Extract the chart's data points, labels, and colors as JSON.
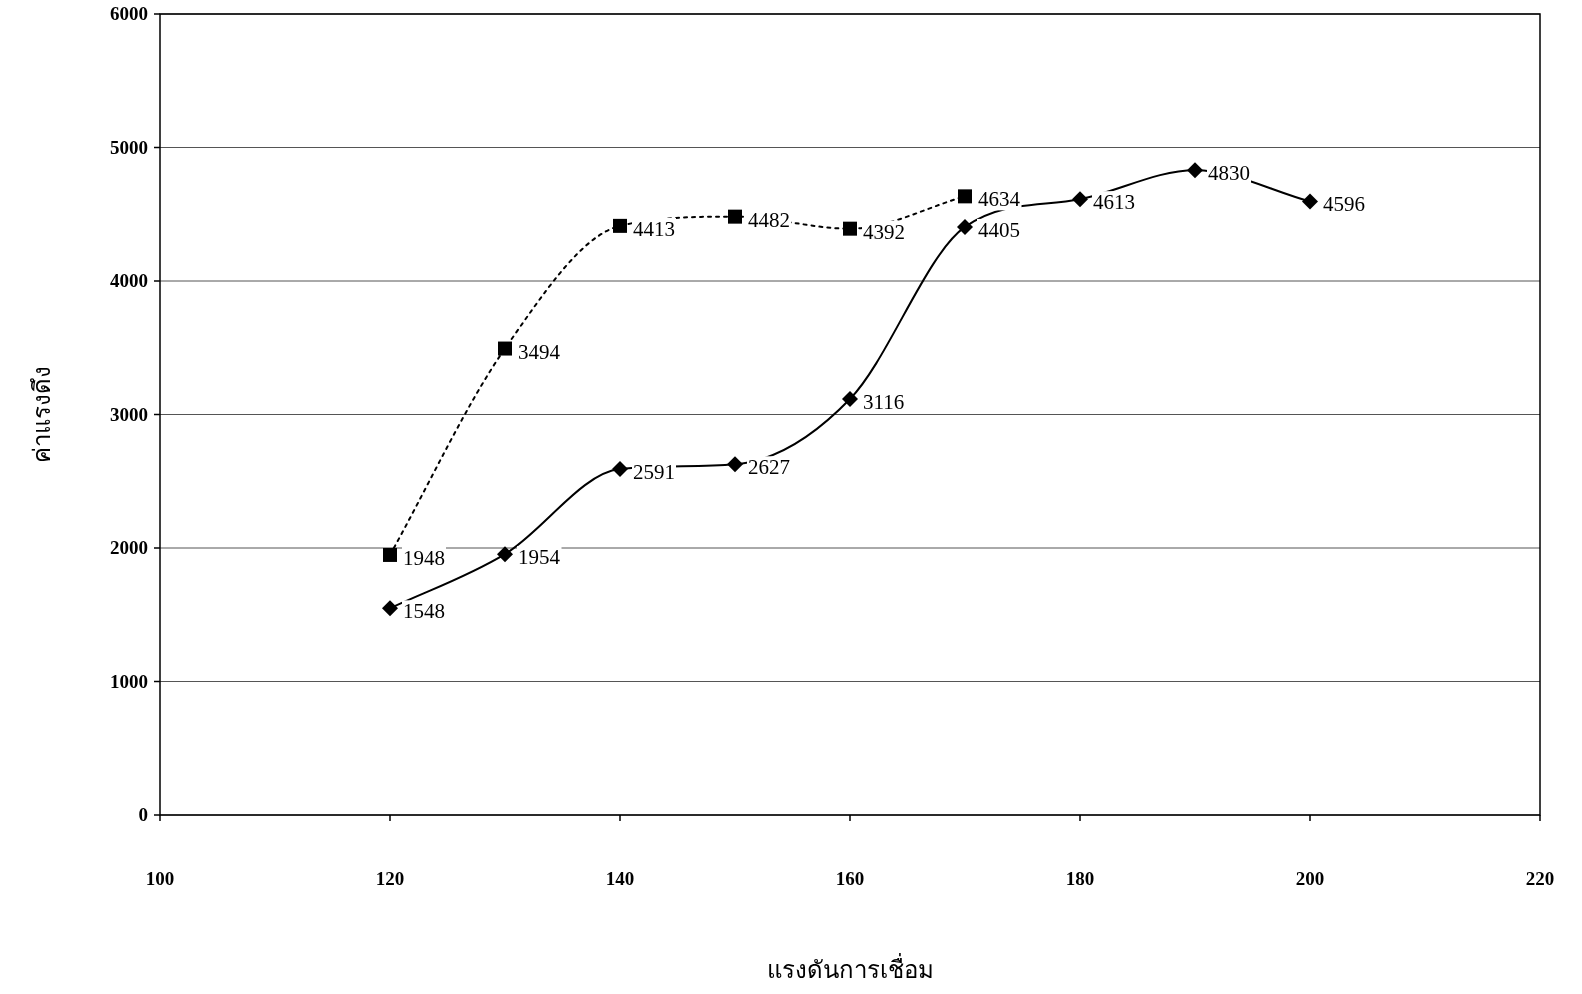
{
  "chart_data": {
    "type": "line",
    "xlabel": "แรงดันการเชื่อม",
    "ylabel": "ค่าแรงดึง",
    "xlim": [
      100,
      220
    ],
    "xticks": [
      100,
      120,
      140,
      160,
      180,
      200,
      220
    ],
    "ylim": [
      0,
      6000
    ],
    "yticks": [
      0,
      1000,
      2000,
      3000,
      4000,
      5000,
      6000
    ],
    "grid": "y",
    "data_labels": true,
    "series": [
      {
        "color": "#000000",
        "marker": "square",
        "line_style": "dotted",
        "x": [
          120,
          130,
          140,
          150,
          160,
          170
        ],
        "values": [
          1948,
          3494,
          4413,
          4482,
          4392,
          4634
        ]
      },
      {
        "color": "#000000",
        "marker": "diamond",
        "line_style": "solid",
        "x": [
          120,
          130,
          140,
          150,
          160,
          170,
          180,
          190,
          200
        ],
        "values": [
          1548,
          1954,
          2591,
          2627,
          3116,
          4405,
          4613,
          4830,
          4596
        ]
      }
    ]
  }
}
